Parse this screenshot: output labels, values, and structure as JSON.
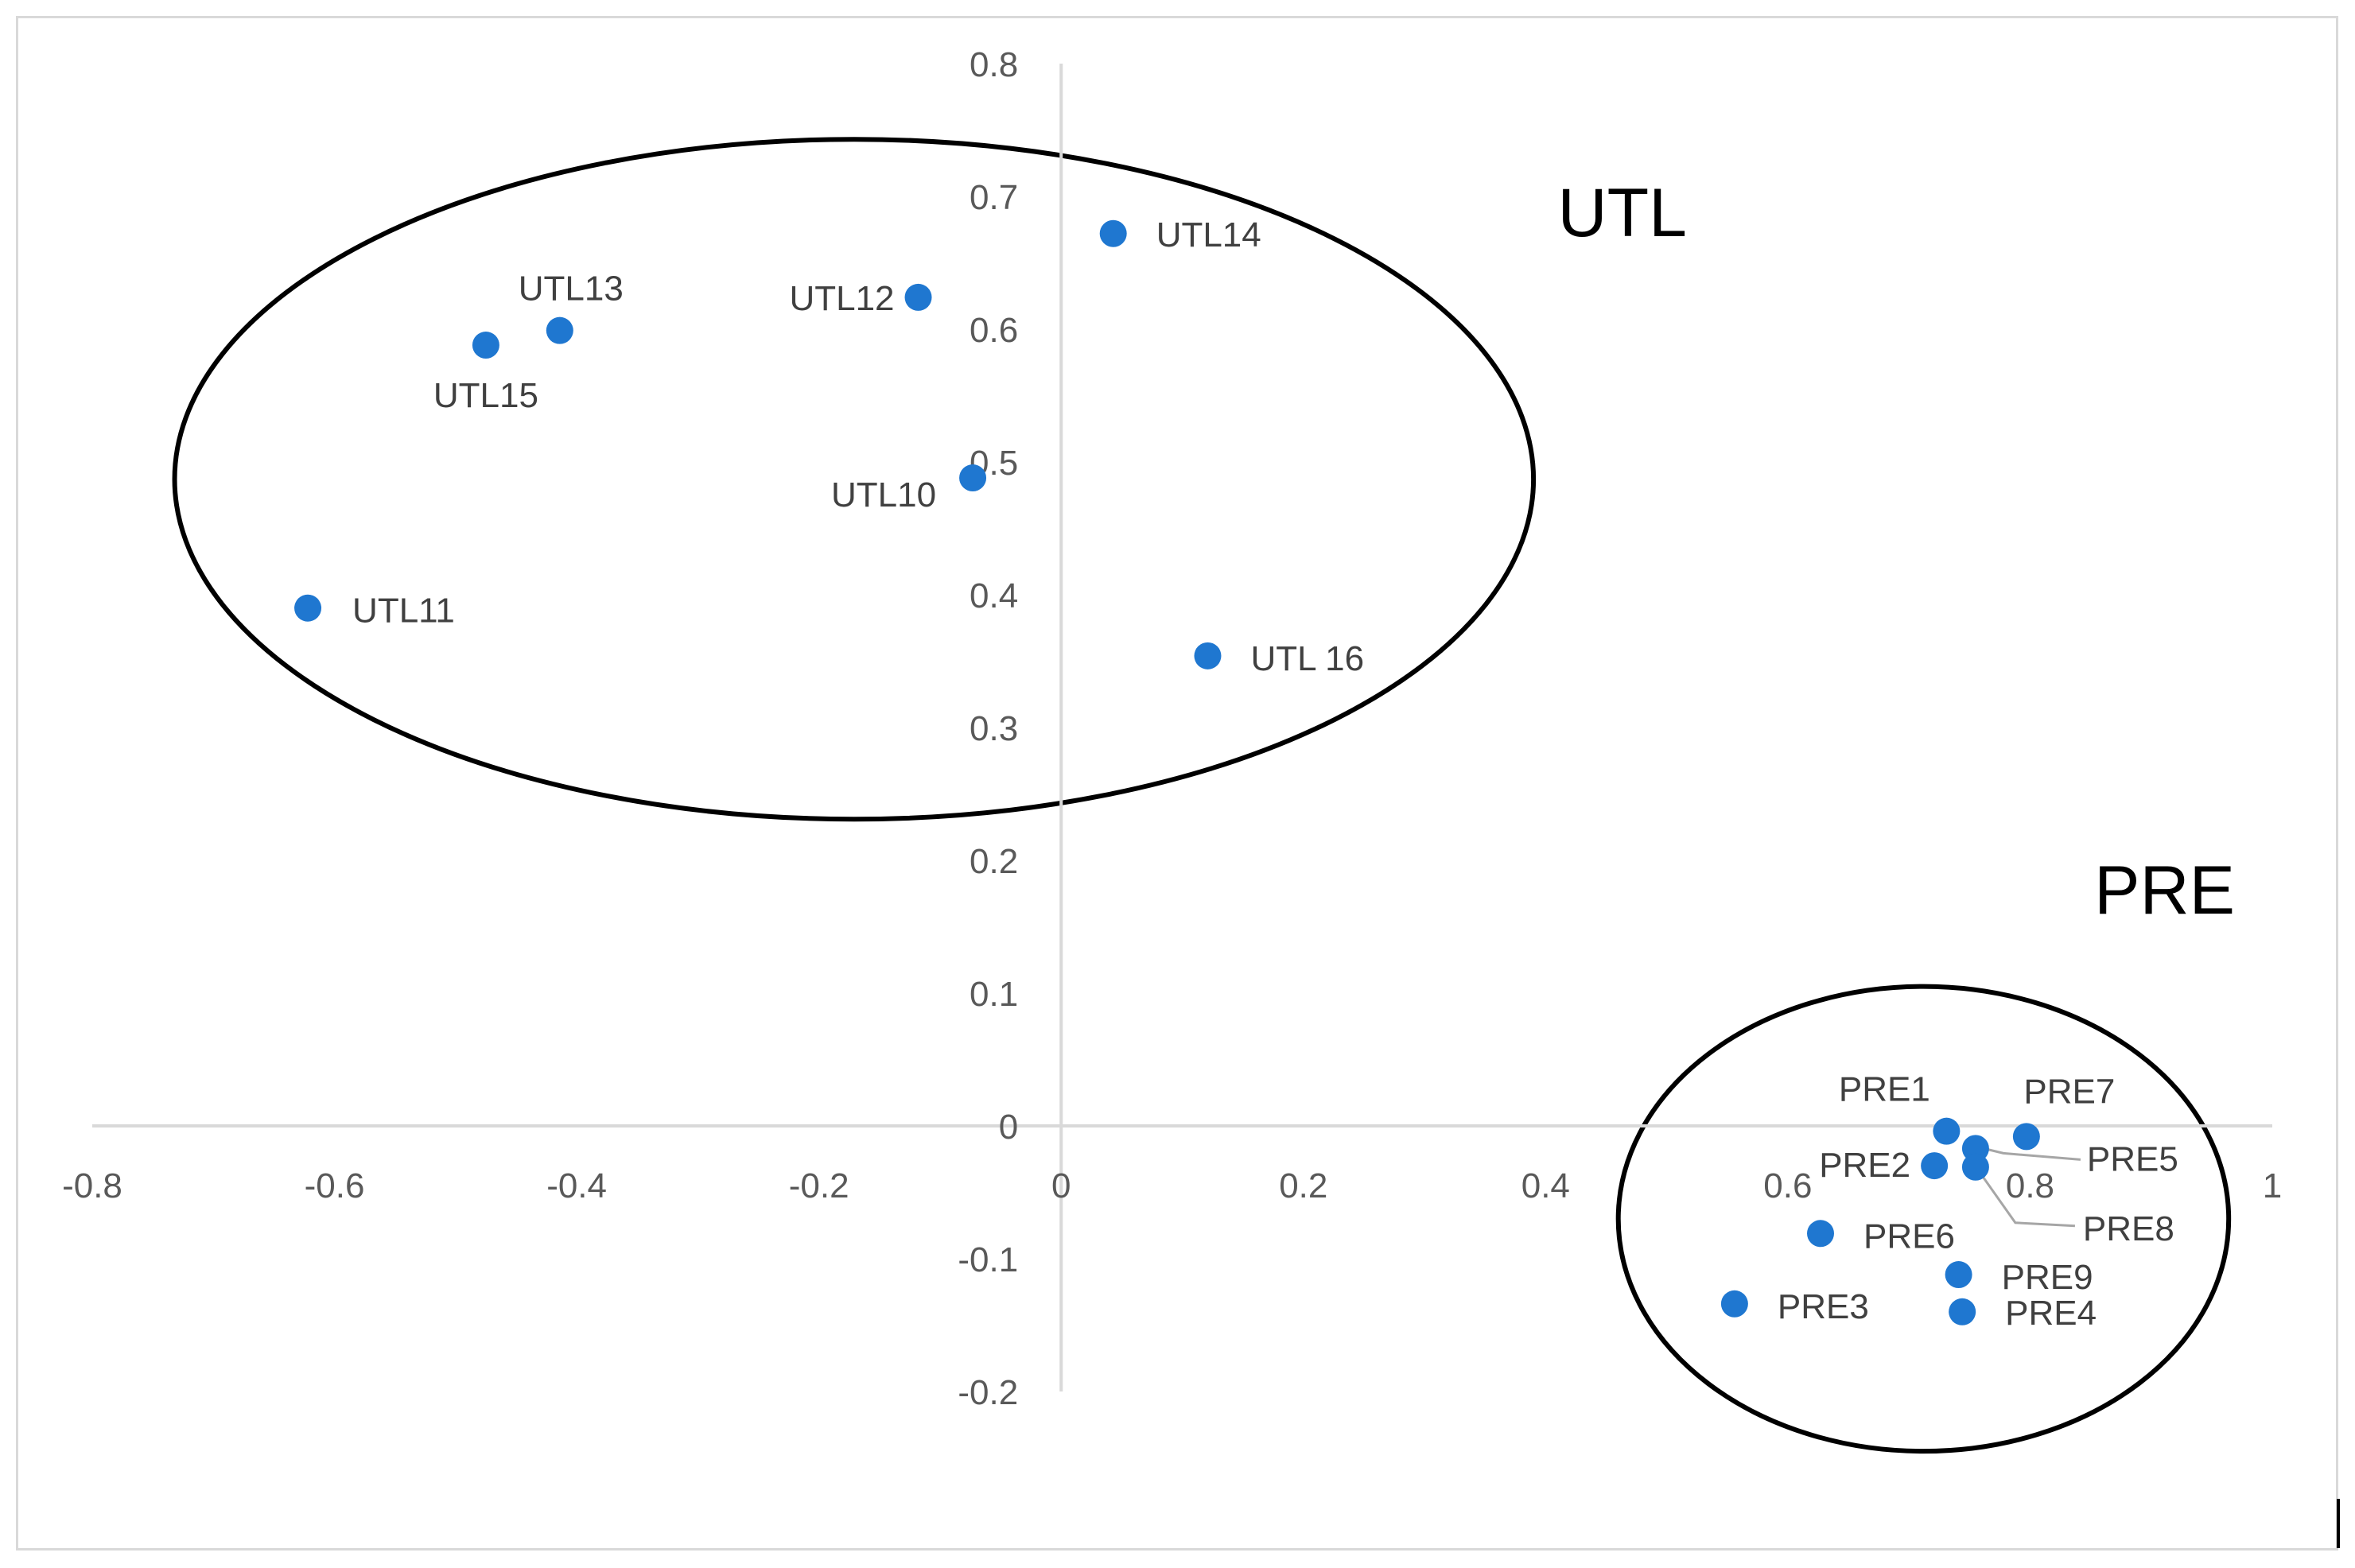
{
  "chart_data": {
    "type": "scatter",
    "title": "",
    "xlabel": "",
    "ylabel": "",
    "xlim": [
      -0.8,
      1
    ],
    "ylim": [
      -0.2,
      0.8
    ],
    "x_ticks": [
      "-0.8",
      "-0.6",
      "-0.4",
      "-0.2",
      "0",
      "0.2",
      "0.4",
      "0.6",
      "0.8",
      "1"
    ],
    "y_ticks": [
      "-0.2",
      "-0.1",
      "0",
      "0.1",
      "0.2",
      "0.3",
      "0.4",
      "0.5",
      "0.6",
      "0.7",
      "0.8"
    ],
    "grid": false,
    "marker_color": "#1f77d0",
    "points": [
      {
        "label": "UTL14",
        "x": 0.043,
        "y": 0.672
      },
      {
        "label": "UTL12",
        "x": -0.118,
        "y": 0.624
      },
      {
        "label": "UTL13",
        "x": -0.414,
        "y": 0.599
      },
      {
        "label": "UTL15",
        "x": -0.475,
        "y": 0.588
      },
      {
        "label": "UTL10",
        "x": -0.073,
        "y": 0.488
      },
      {
        "label": "UTL11",
        "x": -0.622,
        "y": 0.39
      },
      {
        "label": "UTL 16",
        "x": 0.121,
        "y": 0.354
      },
      {
        "label": "PRE1",
        "x": 0.731,
        "y": -0.004
      },
      {
        "label": "PRE7",
        "x": 0.797,
        "y": -0.008
      },
      {
        "label": "PRE5",
        "x": 0.755,
        "y": -0.017
      },
      {
        "label": "PRE2",
        "x": 0.721,
        "y": -0.03
      },
      {
        "label": "PRE8",
        "x": 0.755,
        "y": -0.031
      },
      {
        "label": "PRE6",
        "x": 0.627,
        "y": -0.081
      },
      {
        "label": "PRE9",
        "x": 0.741,
        "y": -0.112
      },
      {
        "label": "PRE3",
        "x": 0.556,
        "y": -0.134
      },
      {
        "label": "PRE4",
        "x": 0.744,
        "y": -0.14
      }
    ],
    "clusters": [
      {
        "name": "UTL",
        "center": [
          -0.171,
          0.487
        ],
        "radius": [
          0.561,
          0.256
        ],
        "label_at": [
          0.41,
          0.67
        ]
      },
      {
        "name": "PRE",
        "center": [
          0.712,
          -0.07
        ],
        "radius": [
          0.252,
          0.175
        ],
        "label_at": [
          0.853,
          0.16
        ]
      }
    ],
    "annotations": [
      "UTL",
      "PRE"
    ]
  }
}
